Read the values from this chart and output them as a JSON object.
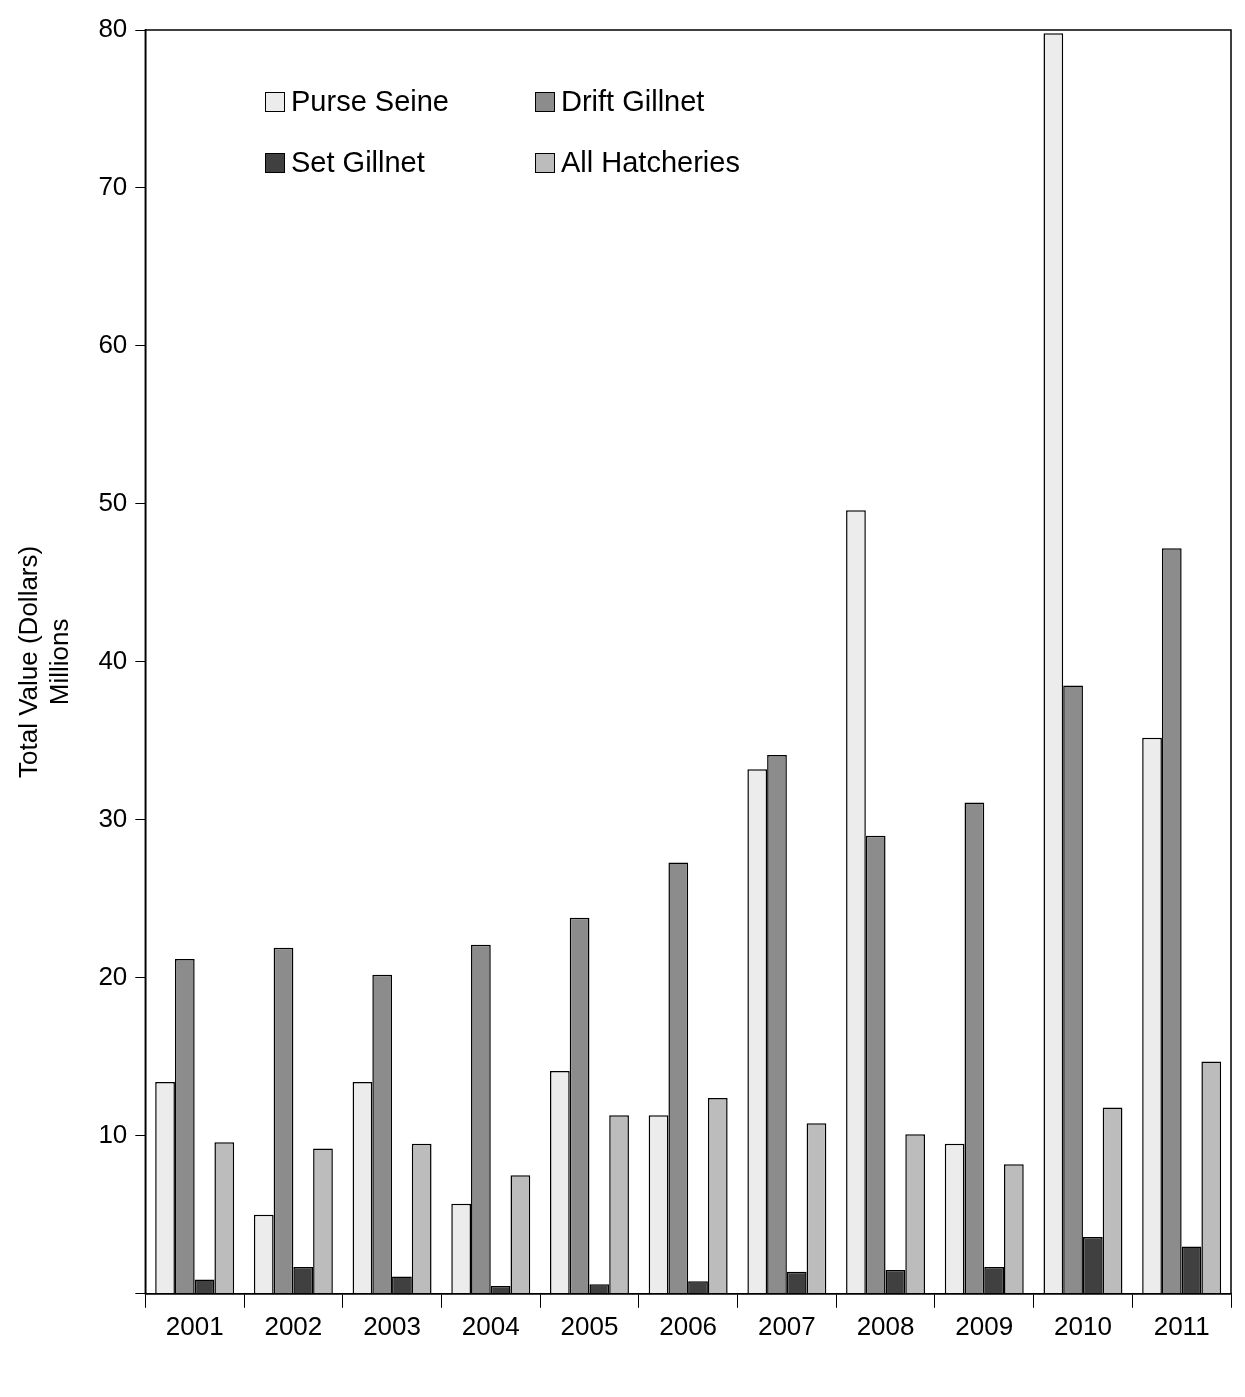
{
  "chart_data": {
    "type": "bar",
    "ylabel": "Total Value (Dollars)\nMillions",
    "categories": [
      "2001",
      "2002",
      "2003",
      "2004",
      "2005",
      "2006",
      "2007",
      "2008",
      "2009",
      "2010",
      "2011"
    ],
    "series": [
      {
        "name": "Purse Seine",
        "color": "#ececec",
        "values": [
          13.4,
          5.0,
          13.4,
          5.7,
          14.1,
          11.3,
          33.2,
          49.6,
          9.5,
          79.8,
          35.2
        ]
      },
      {
        "name": "Drift Gillnet",
        "color": "#8c8c8c",
        "values": [
          21.2,
          21.9,
          20.2,
          22.1,
          23.8,
          27.3,
          34.1,
          29.0,
          31.1,
          38.5,
          47.2
        ]
      },
      {
        "name": "Set Gillnet",
        "color": "#404040",
        "values": [
          0.9,
          1.7,
          1.1,
          0.5,
          0.6,
          0.8,
          1.4,
          1.5,
          1.7,
          3.6,
          3.0
        ]
      },
      {
        "name": "All Hatcheries",
        "color": "#bcbcbc",
        "values": [
          9.6,
          9.2,
          9.5,
          7.5,
          11.3,
          12.4,
          10.8,
          10.1,
          8.2,
          11.8,
          14.7
        ]
      }
    ],
    "ylim": [
      0,
      80
    ],
    "yticks": [
      {
        "value": 0,
        "label": null
      },
      10,
      20,
      30,
      40,
      50,
      60,
      70,
      80
    ],
    "grid": false,
    "legend": "top left"
  }
}
